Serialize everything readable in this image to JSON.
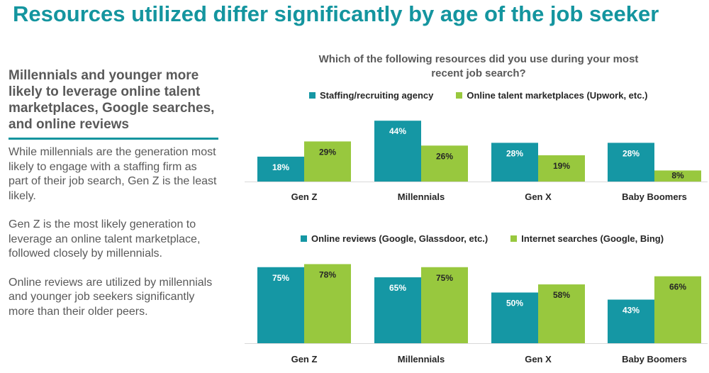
{
  "title": "Resources utilized differ significantly by age of the job seeker",
  "left_panel": {
    "subhead": "Millennials and younger more likely to leverage online talent marketplaces, Google searches, and online reviews",
    "paragraphs": [
      "While millennials are the generation most likely to engage with a staffing firm as part of their job search, Gen Z is the least likely.",
      "Gen Z is the most likely generation to leverage an online talent marketplace, followed closely by millennials.",
      "Online reviews are utilized by millennials and younger job seekers significantly more than their older peers."
    ]
  },
  "question": "Which of the following resources did you use during your most recent job search?",
  "colors": {
    "teal": "#1597a4",
    "green": "#98c83e",
    "accent": "#14959f"
  },
  "chart_data": [
    {
      "type": "bar",
      "categories": [
        "Gen Z",
        "Millennials",
        "Gen X",
        "Baby Boomers"
      ],
      "series": [
        {
          "name": "Staffing/recruiting agency",
          "values": [
            18,
            44,
            28,
            28
          ]
        },
        {
          "name": "Online talent marketplaces (Upwork, etc.)",
          "values": [
            29,
            26,
            19,
            8
          ]
        }
      ],
      "value_labels": [
        [
          "18%",
          "44%",
          "28%",
          "28%"
        ],
        [
          "29%",
          "26%",
          "19%",
          "8%"
        ]
      ],
      "legend_position": "top",
      "grid": false
    },
    {
      "type": "bar",
      "categories": [
        "Gen Z",
        "Millennials",
        "Gen X",
        "Baby Boomers"
      ],
      "series": [
        {
          "name": "Online reviews (Google, Glassdoor, etc.)",
          "values": [
            75,
            65,
            50,
            43
          ]
        },
        {
          "name": "Internet searches (Google, Bing)",
          "values": [
            78,
            75,
            58,
            66
          ]
        }
      ],
      "value_labels": [
        [
          "75%",
          "65%",
          "50%",
          "43%"
        ],
        [
          "78%",
          "75%",
          "58%",
          "66%"
        ]
      ],
      "legend_position": "top",
      "grid": false
    }
  ]
}
